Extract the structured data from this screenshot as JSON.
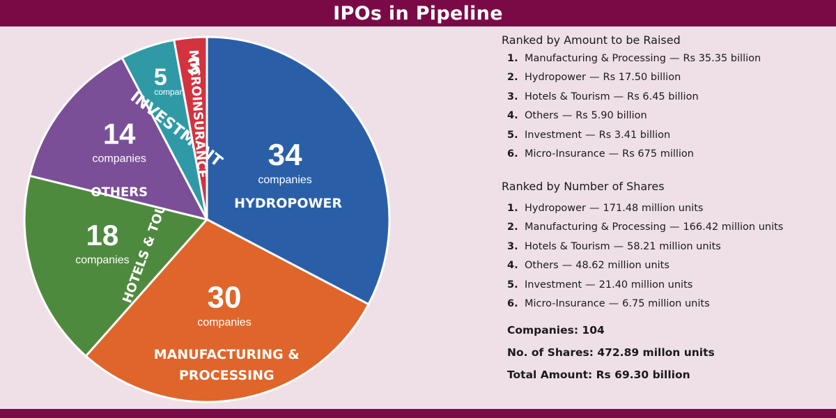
{
  "header": {
    "title": "IPOs in Pipeline"
  },
  "colors": {
    "brand": "#7a0a46",
    "background": "#efe0e8"
  },
  "chart_data": {
    "type": "pie",
    "unit_label": "companies",
    "slices": [
      {
        "label": "HYDROPOWER",
        "label_lines": [
          "HYDROPOWER"
        ],
        "value": 34,
        "color": "#2a5fa8"
      },
      {
        "label": "MANUFACTURING & PROCESSING",
        "label_lines": [
          "MANUFACTURING &",
          "PROCESSING"
        ],
        "value": 30,
        "color": "#e0652a"
      },
      {
        "label": "HOTELS & TOURISM",
        "label_lines": [
          "HOTELS & TOURISM"
        ],
        "value": 18,
        "color": "#4e8a3e"
      },
      {
        "label": "OTHERS",
        "label_lines": [
          "OTHERS"
        ],
        "value": 14,
        "color": "#7a4f98"
      },
      {
        "label": "INVESTMENT",
        "label_lines": [
          "INVESTMENT"
        ],
        "value": 5,
        "color": "#2f9aa6"
      },
      {
        "label": "MICROINSURANCE",
        "label_lines": [
          "MICROINSURANCE"
        ],
        "value": 3,
        "color": "#d3323f"
      }
    ]
  },
  "rankings": {
    "by_amount": {
      "title": "Ranked by Amount to be Raised",
      "items": [
        {
          "rank": "1.",
          "name": "Manufacturing & Processing",
          "value": "Rs 35.35 billion"
        },
        {
          "rank": "2.",
          "name": "Hydropower",
          "value": "Rs 17.50 billion"
        },
        {
          "rank": "3.",
          "name": "Hotels & Tourism",
          "value": "Rs 6.45 billion"
        },
        {
          "rank": "4.",
          "name": "Others",
          "value": "Rs 5.90 billion"
        },
        {
          "rank": "5.",
          "name": "Investment",
          "value": "Rs 3.41 billion"
        },
        {
          "rank": "6.",
          "name": "Micro-Insurance",
          "value": "Rs 675 million"
        }
      ]
    },
    "by_shares": {
      "title": "Ranked by Number of Shares",
      "items": [
        {
          "rank": "1.",
          "name": "Hydropower",
          "value": "171.48 million units"
        },
        {
          "rank": "2.",
          "name": "Manufacturing & Processing",
          "value": "166.42 million units"
        },
        {
          "rank": "3.",
          "name": "Hotels & Tourism",
          "value": "58.21 million units"
        },
        {
          "rank": "4.",
          "name": "Others",
          "value": "48.62 million units"
        },
        {
          "rank": "5.",
          "name": "Investment",
          "value": "21.40 million units"
        },
        {
          "rank": "6.",
          "name": "Micro-Insurance",
          "value": "6.75 million units"
        }
      ]
    },
    "separator": "—"
  },
  "totals": {
    "companies": "Companies: 104",
    "shares": "No. of Shares: 472.89 millon units",
    "amount": "Total Amount: Rs 69.30 billion"
  }
}
